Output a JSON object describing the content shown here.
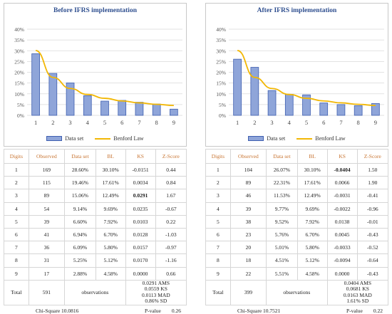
{
  "chart_data": [
    {
      "type": "bar",
      "title": "Before IFRS implementation",
      "categories": [
        "1",
        "2",
        "3",
        "4",
        "5",
        "6",
        "7",
        "8",
        "9"
      ],
      "series": [
        {
          "name": "Data set",
          "type": "bar",
          "values": [
            28.6,
            19.46,
            15.06,
            9.14,
            6.6,
            6.94,
            6.09,
            5.25,
            2.88
          ]
        },
        {
          "name": "Benford Law",
          "type": "line",
          "values": [
            30.1,
            17.61,
            12.49,
            9.69,
            7.92,
            6.7,
            5.8,
            5.12,
            4.58
          ]
        }
      ],
      "ylim": [
        0,
        40
      ],
      "yticks": [
        "0%",
        "5%",
        "10%",
        "15%",
        "20%",
        "25%",
        "30%",
        "35%",
        "40%"
      ],
      "legend": "bottom",
      "grid": true
    },
    {
      "type": "bar",
      "title": "After IFRS implementation",
      "categories": [
        "1",
        "2",
        "3",
        "4",
        "5",
        "6",
        "7",
        "8",
        "9"
      ],
      "series": [
        {
          "name": "Data set",
          "type": "bar",
          "values": [
            26.07,
            22.31,
            11.53,
            9.77,
            9.52,
            5.76,
            5.01,
            4.51,
            5.51
          ]
        },
        {
          "name": "Benford Law",
          "type": "line",
          "values": [
            30.1,
            17.61,
            12.49,
            9.69,
            7.92,
            6.7,
            5.8,
            5.12,
            4.58
          ]
        }
      ],
      "ylim": [
        0,
        40
      ],
      "yticks": [
        "0%",
        "5%",
        "10%",
        "15%",
        "20%",
        "25%",
        "30%",
        "35%",
        "40%"
      ],
      "legend": "bottom",
      "grid": true
    }
  ],
  "bar_color": "#8fa5d9",
  "bar_edge_color": "#3f5fb0",
  "line_color": "#f2b705",
  "header_color": "#c87533",
  "tables": [
    {
      "headers": [
        "Digits",
        "Observed",
        "Data set",
        "BL",
        "KS",
        "Z-Score"
      ],
      "rows": [
        {
          "digit": "1",
          "observed": "169",
          "dataset": "28.60%",
          "bl": "30.10%",
          "ks": "-0.0151",
          "z": "0.44",
          "bold": false
        },
        {
          "digit": "2",
          "observed": "115",
          "dataset": "19.46%",
          "bl": "17.61%",
          "ks": "0.0034",
          "z": "0.84",
          "bold": false
        },
        {
          "digit": "3",
          "observed": "89",
          "dataset": "15.06%",
          "bl": "12.49%",
          "ks": "0.0291",
          "z": "1.67",
          "bold": true
        },
        {
          "digit": "4",
          "observed": "54",
          "dataset": "9.14%",
          "bl": "9.69%",
          "ks": "0.0235",
          "z": "-0.67",
          "bold": false
        },
        {
          "digit": "5",
          "observed": "39",
          "dataset": "6.60%",
          "bl": "7.92%",
          "ks": "0.0103",
          "z": "0.22",
          "bold": false
        },
        {
          "digit": "6",
          "observed": "41",
          "dataset": "6.94%",
          "bl": "6.70%",
          "ks": "0.0128",
          "z": "-1.03",
          "bold": false
        },
        {
          "digit": "7",
          "observed": "36",
          "dataset": "6.09%",
          "bl": "5.80%",
          "ks": "0.0157",
          "z": "-0.97",
          "bold": false
        },
        {
          "digit": "8",
          "observed": "31",
          "dataset": "5.25%",
          "bl": "5.12%",
          "ks": "0.0170",
          "z": "-1.16",
          "bold": false
        },
        {
          "digit": "9",
          "observed": "17",
          "dataset": "2.88%",
          "bl": "4.58%",
          "ks": "0.0000",
          "z": "0.66",
          "bold": false
        }
      ],
      "total_label": "Total",
      "total_value": "591",
      "observations_label": "observations",
      "summary": [
        {
          "value": "0.0291",
          "label": "AMS"
        },
        {
          "value": "0.0559",
          "label": "KS"
        },
        {
          "value": "0.0113",
          "label": "MAD"
        },
        {
          "value": "0.86%",
          "label": "SD"
        }
      ],
      "chi_label": "Chi-Square",
      "chi_value": "10.0816",
      "p_label": "P-value",
      "p_value": "0.26"
    },
    {
      "headers": [
        "Digits",
        "Observed",
        "Data set",
        "BL",
        "KS",
        "Z-Score"
      ],
      "rows": [
        {
          "digit": "1",
          "observed": "104",
          "dataset": "26.07%",
          "bl": "30.10%",
          "ks": "-0.0404",
          "z": "1.50",
          "bold": true
        },
        {
          "digit": "2",
          "observed": "89",
          "dataset": "22.31%",
          "bl": "17.61%",
          "ks": "0.0066",
          "z": "1.90",
          "bold": false
        },
        {
          "digit": "3",
          "observed": "46",
          "dataset": "11.53%",
          "bl": "12.49%",
          "ks": "-0.0031",
          "z": "-0.41",
          "bold": false
        },
        {
          "digit": "4",
          "observed": "39",
          "dataset": "9.77%",
          "bl": "9.69%",
          "ks": "-0.0022",
          "z": "-0.96",
          "bold": false
        },
        {
          "digit": "5",
          "observed": "38",
          "dataset": "9.52%",
          "bl": "7.92%",
          "ks": "0.0138",
          "z": "-0.01",
          "bold": false
        },
        {
          "digit": "6",
          "observed": "23",
          "dataset": "5.76%",
          "bl": "6.70%",
          "ks": "0.0045",
          "z": "-0.43",
          "bold": false
        },
        {
          "digit": "7",
          "observed": "20",
          "dataset": "5.01%",
          "bl": "5.80%",
          "ks": "-0.0033",
          "z": "-0.52",
          "bold": false
        },
        {
          "digit": "8",
          "observed": "18",
          "dataset": "4.51%",
          "bl": "5.12%",
          "ks": "-0.0094",
          "z": "-0.64",
          "bold": false
        },
        {
          "digit": "9",
          "observed": "22",
          "dataset": "5.51%",
          "bl": "4.58%",
          "ks": "0.0000",
          "z": "-0.43",
          "bold": false
        }
      ],
      "total_label": "Total",
      "total_value": "399",
      "observations_label": "observations",
      "summary": [
        {
          "value": "0.0404",
          "label": "AMS"
        },
        {
          "value": "0.0681",
          "label": "KS"
        },
        {
          "value": "0.0163",
          "label": "MAD"
        },
        {
          "value": "1.61%",
          "label": "SD"
        }
      ],
      "chi_label": "Chi-Square",
      "chi_value": "10.7521",
      "p_label": "P-value",
      "p_value": "0.22"
    }
  ]
}
